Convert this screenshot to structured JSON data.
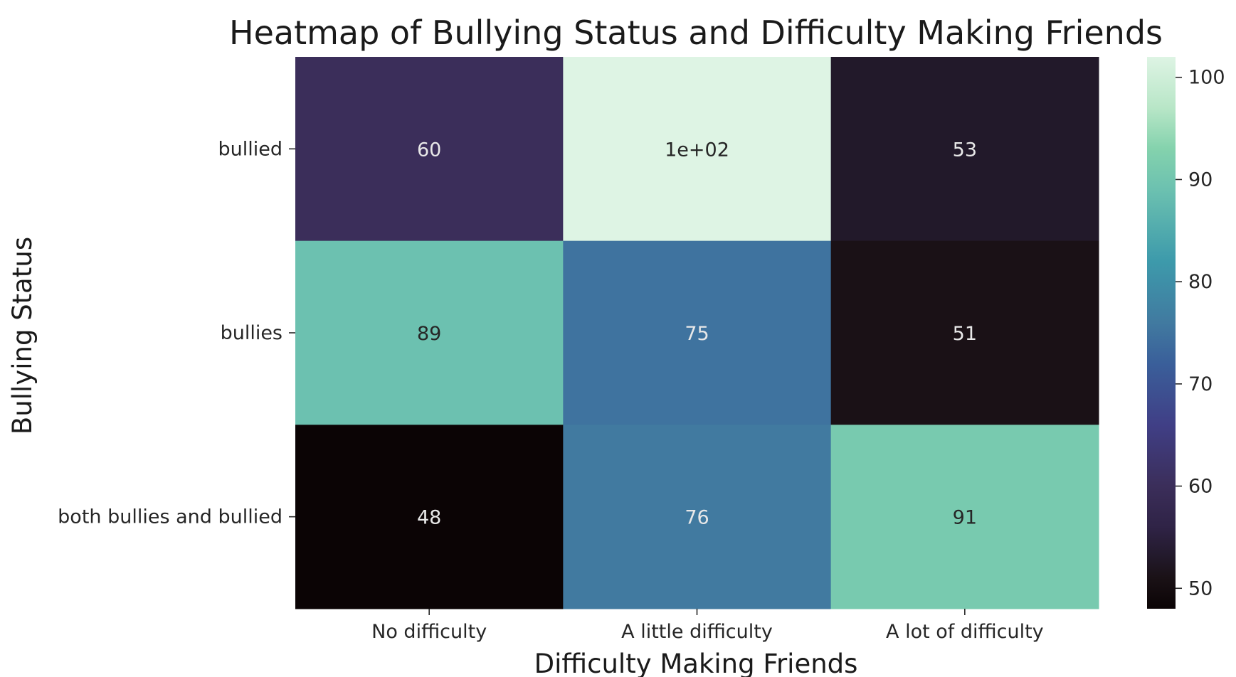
{
  "chart_data": {
    "type": "heatmap",
    "title": "Heatmap of Bullying Status and Difficulty Making Friends",
    "xlabel": "Difficulty Making Friends",
    "ylabel": "Bullying Status",
    "x_categories": [
      "No difficulty",
      "A little difficulty",
      "A lot of difficulty"
    ],
    "y_categories": [
      "bullied",
      "bullies",
      "both bullies and bullied"
    ],
    "values": [
      [
        60,
        102,
        53
      ],
      [
        89,
        75,
        51
      ],
      [
        48,
        76,
        91
      ]
    ],
    "annotations": [
      [
        "60",
        "1e+02",
        "53"
      ],
      [
        "89",
        "75",
        "51"
      ],
      [
        "48",
        "76",
        "91"
      ]
    ],
    "colorbar": {
      "range": [
        48,
        102
      ],
      "ticks": [
        50,
        60,
        70,
        80,
        90,
        100
      ],
      "tick_labels": [
        "50",
        "60",
        "70",
        "80",
        "90",
        "100"
      ],
      "colormap": "mako",
      "color_stops": [
        {
          "value": 48,
          "color": "#0b0405"
        },
        {
          "value": 51,
          "color": "#1a1116"
        },
        {
          "value": 53,
          "color": "#22192a"
        },
        {
          "value": 56,
          "color": "#2f2346"
        },
        {
          "value": 60,
          "color": "#3b2e5a"
        },
        {
          "value": 66,
          "color": "#403f86"
        },
        {
          "value": 72,
          "color": "#3a5f9a"
        },
        {
          "value": 76,
          "color": "#417aa0"
        },
        {
          "value": 82,
          "color": "#3d9aab"
        },
        {
          "value": 89,
          "color": "#6cc1b0"
        },
        {
          "value": 93,
          "color": "#84d2ad"
        },
        {
          "value": 97,
          "color": "#b8e6c7"
        },
        {
          "value": 102,
          "color": "#def4e4"
        }
      ]
    },
    "annotation_colors": {
      "light": "#e8e8e8",
      "dark": "#262626"
    },
    "annotation_dark_threshold": 85
  }
}
